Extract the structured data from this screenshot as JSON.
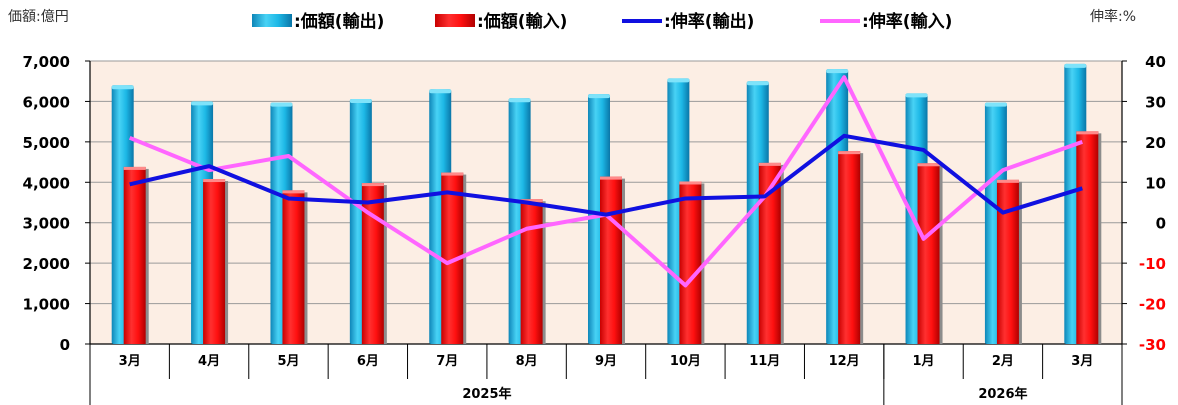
{
  "chart_data": {
    "type": "bar",
    "left_unit_label": "価額:億円",
    "right_unit_label": "伸率:%",
    "legend": [
      {
        "label": ":価額(輸出)",
        "kind": "bar",
        "color": "#1BB8E6"
      },
      {
        "label": ":価額(輸入)",
        "kind": "bar",
        "color": "#FF1A1A"
      },
      {
        "label": ":伸率(輸出)",
        "kind": "line",
        "color": "#1010E0"
      },
      {
        "label": ":伸率(輸入)",
        "kind": "line",
        "color": "#FF66FF"
      }
    ],
    "categories": [
      "3月",
      "4月",
      "5月",
      "6月",
      "7月",
      "8月",
      "9月",
      "10月",
      "11月",
      "12月",
      "1月",
      "2月",
      "3月"
    ],
    "year_groups": [
      {
        "label": "2025年",
        "count": 10
      },
      {
        "label": "2026年",
        "count": 3
      }
    ],
    "series": [
      {
        "name": "価額(輸出)",
        "axis": "left",
        "type": "bar",
        "values": [
          6400,
          6000,
          5970,
          6060,
          6300,
          6080,
          6180,
          6570,
          6500,
          6800,
          6200,
          5970,
          6930
        ]
      },
      {
        "name": "価額(輸入)",
        "axis": "left",
        "type": "bar",
        "values": [
          4380,
          4080,
          3800,
          3980,
          4240,
          3580,
          4140,
          4020,
          4480,
          4770,
          4470,
          4060,
          5260
        ]
      },
      {
        "name": "伸率(輸出)",
        "axis": "right",
        "type": "line",
        "values": [
          9.5,
          14,
          6,
          5,
          7.5,
          5,
          2,
          6,
          6.5,
          21.5,
          18,
          2.5,
          8.5
        ]
      },
      {
        "name": "伸率(輸入)",
        "axis": "right",
        "type": "line",
        "values": [
          21,
          13,
          16.5,
          2.5,
          -10,
          -1.5,
          2,
          -15.5,
          6.5,
          36,
          -4,
          13,
          20
        ]
      }
    ],
    "left_axis": {
      "min": 0,
      "max": 7000,
      "ticks": [
        "0",
        "1,000",
        "2,000",
        "3,000",
        "4,000",
        "5,000",
        "6,000",
        "7,000"
      ]
    },
    "right_axis": {
      "min": -30,
      "max": 40,
      "ticks": [
        "-30",
        "-20",
        "-10",
        "0",
        "10",
        "20",
        "30",
        "40"
      ]
    },
    "grid": true,
    "plot_background": "#FCEEE4",
    "negative_tick_color": "#FF0000"
  }
}
